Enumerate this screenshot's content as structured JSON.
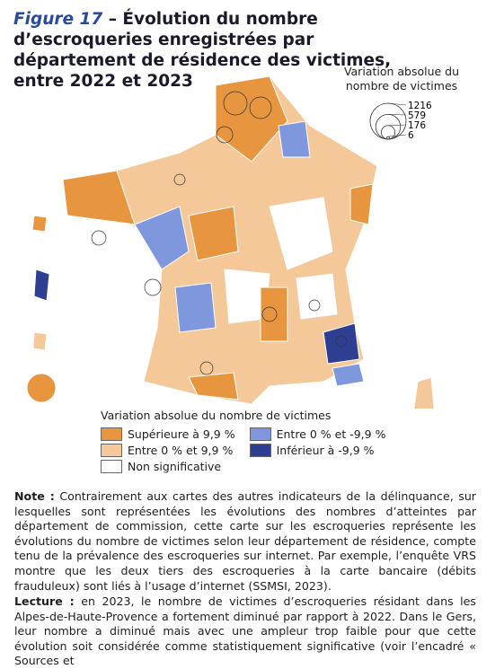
{
  "figure": {
    "label": "Figure 17",
    "title": "– Évolution du nombre d’escroqueries enregistrées par département de résidence des victimes, entre 2022 et 2023"
  },
  "size_legend": {
    "title": "Variation absolue du nombre de victimes",
    "values": [
      1216,
      579,
      176,
      6
    ]
  },
  "color_legend": {
    "title": "Variation absolue du nombre de victimes",
    "items": [
      {
        "label": "Supérieure à 9,9 %",
        "color": "#e8953f"
      },
      {
        "label": "Entre 0 % et 9,9 %",
        "color": "#f5c899"
      },
      {
        "label": "Non significative",
        "color": "#ffffff"
      },
      {
        "label": "Entre 0 % et -9,9 %",
        "color": "#7f97dd"
      },
      {
        "label": "Inférieur à -9,9 %",
        "color": "#2d3e93"
      }
    ]
  },
  "note": {
    "label": "Note :",
    "text": "Contrairement aux cartes des autres indicateurs de la délinquance, sur lesquelles sont représentées les évolutions des nombres d’atteintes par département de commission, cette carte sur les escroqueries représente les évolutions du nombre de victimes selon leur département de résidence, compte tenu de la prévalence des escroqueries sur internet. Par exemple, l’enquête VRS montre que les deux tiers des escroqueries à la carte bancaire (débits frauduleux) sont liés à l’usage d’internet (SSMSI, 2023)."
  },
  "lecture": {
    "label": "Lecture :",
    "text": "en 2023, le nombre de victimes d’escroqueries résidant dans les Alpes-de-Haute-Provence a fortement diminué par rapport à 2022. Dans le Gers, leur nombre a diminué mais avec une ampleur trop faible pour que cette évolution soit considérée comme statistiquement significative (voir l’encadré « Sources et"
  }
}
